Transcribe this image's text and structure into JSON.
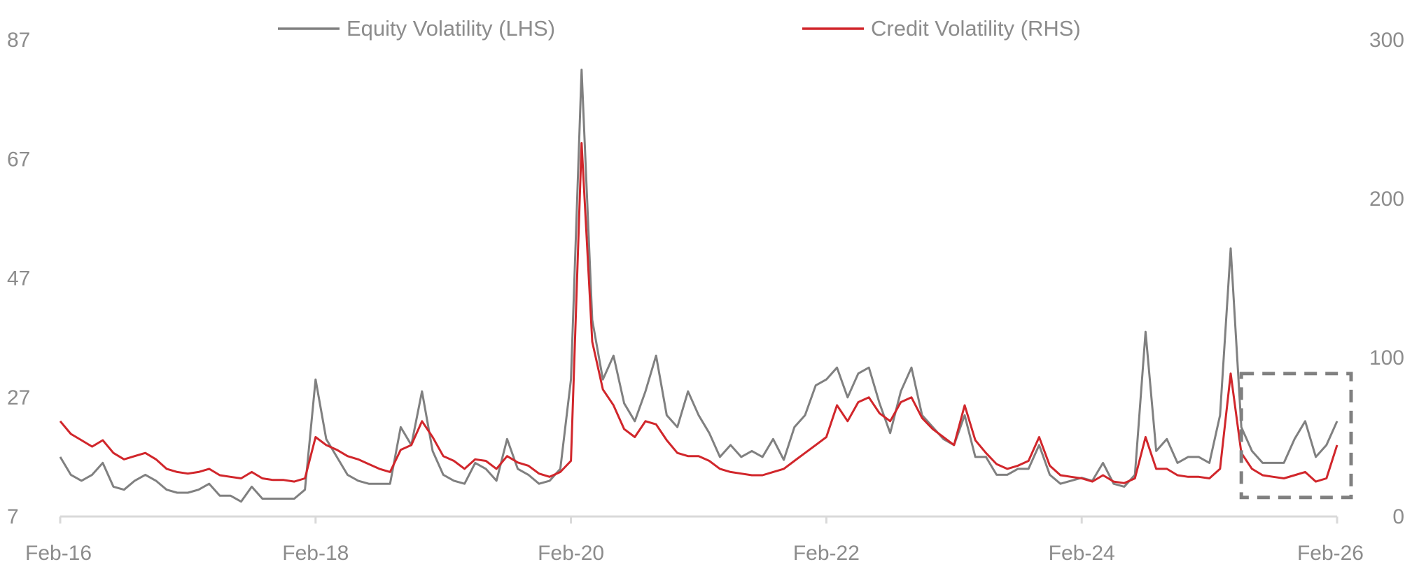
{
  "chart_data": {
    "type": "line",
    "title": "",
    "xlabel": "",
    "ylabel": "",
    "x_ticks": [
      "Feb-16",
      "Feb-18",
      "Feb-20",
      "Feb-22",
      "Feb-24",
      "Feb-26"
    ],
    "x_range": [
      "Feb-16",
      "Feb-26"
    ],
    "y_left": {
      "lim": [
        7,
        87
      ],
      "ticks": [
        7,
        27,
        47,
        67,
        87
      ]
    },
    "y_right": {
      "lim": [
        0,
        300
      ],
      "ticks": [
        0,
        100,
        200,
        300
      ]
    },
    "grid": false,
    "legend_position": "top",
    "highlight_box": {
      "x": [
        "2025-05",
        "2026-02"
      ],
      "y_right": [
        12,
        90
      ],
      "style": "dashed"
    },
    "series": [
      {
        "name": "Equity Volatility (LHS)",
        "axis": "left",
        "color": "#808080",
        "points": [
          [
            "2016-02",
            17
          ],
          [
            "2016-03",
            14
          ],
          [
            "2016-04",
            13
          ],
          [
            "2016-05",
            14
          ],
          [
            "2016-06",
            16
          ],
          [
            "2016-07",
            12
          ],
          [
            "2016-08",
            11.5
          ],
          [
            "2016-09",
            13
          ],
          [
            "2016-10",
            14
          ],
          [
            "2016-11",
            13
          ],
          [
            "2016-12",
            11.5
          ],
          [
            "2017-01",
            11
          ],
          [
            "2017-02",
            11
          ],
          [
            "2017-03",
            11.5
          ],
          [
            "2017-04",
            12.5
          ],
          [
            "2017-05",
            10.5
          ],
          [
            "2017-06",
            10.5
          ],
          [
            "2017-07",
            9.5
          ],
          [
            "2017-08",
            12
          ],
          [
            "2017-09",
            10
          ],
          [
            "2017-10",
            10
          ],
          [
            "2017-11",
            10
          ],
          [
            "2017-12",
            10
          ],
          [
            "2018-01",
            11.5
          ],
          [
            "2018-02",
            30
          ],
          [
            "2018-03",
            20
          ],
          [
            "2018-04",
            17
          ],
          [
            "2018-05",
            14
          ],
          [
            "2018-06",
            13
          ],
          [
            "2018-07",
            12.5
          ],
          [
            "2018-08",
            12.5
          ],
          [
            "2018-09",
            12.5
          ],
          [
            "2018-10",
            22
          ],
          [
            "2018-11",
            19
          ],
          [
            "2018-12",
            28
          ],
          [
            "2019-01",
            18
          ],
          [
            "2019-02",
            14
          ],
          [
            "2019-03",
            13
          ],
          [
            "2019-04",
            12.5
          ],
          [
            "2019-05",
            16
          ],
          [
            "2019-06",
            15
          ],
          [
            "2019-07",
            13
          ],
          [
            "2019-08",
            20
          ],
          [
            "2019-09",
            15
          ],
          [
            "2019-10",
            14
          ],
          [
            "2019-11",
            12.5
          ],
          [
            "2019-12",
            13
          ],
          [
            "2020-01",
            15
          ],
          [
            "2020-02",
            30
          ],
          [
            "2020-03",
            82
          ],
          [
            "2020-04",
            40
          ],
          [
            "2020-05",
            30
          ],
          [
            "2020-06",
            34
          ],
          [
            "2020-07",
            26
          ],
          [
            "2020-08",
            23
          ],
          [
            "2020-09",
            28
          ],
          [
            "2020-10",
            34
          ],
          [
            "2020-11",
            24
          ],
          [
            "2020-12",
            22
          ],
          [
            "2021-01",
            28
          ],
          [
            "2021-02",
            24
          ],
          [
            "2021-03",
            21
          ],
          [
            "2021-04",
            17
          ],
          [
            "2021-05",
            19
          ],
          [
            "2021-06",
            17
          ],
          [
            "2021-07",
            18
          ],
          [
            "2021-08",
            17
          ],
          [
            "2021-09",
            20
          ],
          [
            "2021-10",
            16.5
          ],
          [
            "2021-11",
            22
          ],
          [
            "2021-12",
            24
          ],
          [
            "2022-01",
            29
          ],
          [
            "2022-02",
            30
          ],
          [
            "2022-03",
            32
          ],
          [
            "2022-04",
            27
          ],
          [
            "2022-05",
            31
          ],
          [
            "2022-06",
            32
          ],
          [
            "2022-07",
            26
          ],
          [
            "2022-08",
            21
          ],
          [
            "2022-09",
            28
          ],
          [
            "2022-10",
            32
          ],
          [
            "2022-11",
            24
          ],
          [
            "2022-12",
            22
          ],
          [
            "2023-01",
            20
          ],
          [
            "2023-02",
            19
          ],
          [
            "2023-03",
            24
          ],
          [
            "2023-04",
            17
          ],
          [
            "2023-05",
            17
          ],
          [
            "2023-06",
            14
          ],
          [
            "2023-07",
            14
          ],
          [
            "2023-08",
            15
          ],
          [
            "2023-09",
            15
          ],
          [
            "2023-10",
            19
          ],
          [
            "2023-11",
            14
          ],
          [
            "2023-12",
            12.5
          ],
          [
            "2024-01",
            13
          ],
          [
            "2024-02",
            13.5
          ],
          [
            "2024-03",
            13
          ],
          [
            "2024-04",
            16
          ],
          [
            "2024-05",
            12.5
          ],
          [
            "2024-06",
            12
          ],
          [
            "2024-07",
            14
          ],
          [
            "2024-08",
            38
          ],
          [
            "2024-09",
            18
          ],
          [
            "2024-10",
            20
          ],
          [
            "2024-11",
            16
          ],
          [
            "2024-12",
            17
          ],
          [
            "2025-01",
            17
          ],
          [
            "2025-02",
            16
          ],
          [
            "2025-03",
            24
          ],
          [
            "2025-04",
            52
          ],
          [
            "2025-05",
            22
          ],
          [
            "2025-06",
            18
          ],
          [
            "2025-07",
            16
          ],
          [
            "2025-08",
            16
          ],
          [
            "2025-09",
            16
          ],
          [
            "2025-10",
            20
          ],
          [
            "2025-11",
            23
          ],
          [
            "2025-12",
            17
          ],
          [
            "2026-01",
            19
          ],
          [
            "2026-02",
            23
          ]
        ]
      },
      {
        "name": "Credit Volatility (RHS)",
        "axis": "right",
        "color": "#d1262b",
        "points": [
          [
            "2016-02",
            60
          ],
          [
            "2016-03",
            52
          ],
          [
            "2016-04",
            48
          ],
          [
            "2016-05",
            44
          ],
          [
            "2016-06",
            48
          ],
          [
            "2016-07",
            40
          ],
          [
            "2016-08",
            36
          ],
          [
            "2016-09",
            38
          ],
          [
            "2016-10",
            40
          ],
          [
            "2016-11",
            36
          ],
          [
            "2016-12",
            30
          ],
          [
            "2017-01",
            28
          ],
          [
            "2017-02",
            27
          ],
          [
            "2017-03",
            28
          ],
          [
            "2017-04",
            30
          ],
          [
            "2017-05",
            26
          ],
          [
            "2017-06",
            25
          ],
          [
            "2017-07",
            24
          ],
          [
            "2017-08",
            28
          ],
          [
            "2017-09",
            24
          ],
          [
            "2017-10",
            23
          ],
          [
            "2017-11",
            23
          ],
          [
            "2017-12",
            22
          ],
          [
            "2018-01",
            24
          ],
          [
            "2018-02",
            50
          ],
          [
            "2018-03",
            45
          ],
          [
            "2018-04",
            42
          ],
          [
            "2018-05",
            38
          ],
          [
            "2018-06",
            36
          ],
          [
            "2018-07",
            33
          ],
          [
            "2018-08",
            30
          ],
          [
            "2018-09",
            28
          ],
          [
            "2018-10",
            42
          ],
          [
            "2018-11",
            45
          ],
          [
            "2018-12",
            60
          ],
          [
            "2019-01",
            50
          ],
          [
            "2019-02",
            38
          ],
          [
            "2019-03",
            35
          ],
          [
            "2019-04",
            30
          ],
          [
            "2019-05",
            36
          ],
          [
            "2019-06",
            35
          ],
          [
            "2019-07",
            30
          ],
          [
            "2019-08",
            38
          ],
          [
            "2019-09",
            34
          ],
          [
            "2019-10",
            32
          ],
          [
            "2019-11",
            27
          ],
          [
            "2019-12",
            25
          ],
          [
            "2020-01",
            28
          ],
          [
            "2020-02",
            35
          ],
          [
            "2020-03",
            235
          ],
          [
            "2020-04",
            110
          ],
          [
            "2020-05",
            80
          ],
          [
            "2020-06",
            70
          ],
          [
            "2020-07",
            55
          ],
          [
            "2020-08",
            50
          ],
          [
            "2020-09",
            60
          ],
          [
            "2020-10",
            58
          ],
          [
            "2020-11",
            48
          ],
          [
            "2020-12",
            40
          ],
          [
            "2021-01",
            38
          ],
          [
            "2021-02",
            38
          ],
          [
            "2021-03",
            35
          ],
          [
            "2021-04",
            30
          ],
          [
            "2021-05",
            28
          ],
          [
            "2021-06",
            27
          ],
          [
            "2021-07",
            26
          ],
          [
            "2021-08",
            26
          ],
          [
            "2021-09",
            28
          ],
          [
            "2021-10",
            30
          ],
          [
            "2021-11",
            35
          ],
          [
            "2021-12",
            40
          ],
          [
            "2022-01",
            45
          ],
          [
            "2022-02",
            50
          ],
          [
            "2022-03",
            70
          ],
          [
            "2022-04",
            60
          ],
          [
            "2022-05",
            72
          ],
          [
            "2022-06",
            75
          ],
          [
            "2022-07",
            65
          ],
          [
            "2022-08",
            60
          ],
          [
            "2022-09",
            72
          ],
          [
            "2022-10",
            75
          ],
          [
            "2022-11",
            62
          ],
          [
            "2022-12",
            55
          ],
          [
            "2023-01",
            50
          ],
          [
            "2023-02",
            45
          ],
          [
            "2023-03",
            70
          ],
          [
            "2023-04",
            48
          ],
          [
            "2023-05",
            40
          ],
          [
            "2023-06",
            33
          ],
          [
            "2023-07",
            30
          ],
          [
            "2023-08",
            32
          ],
          [
            "2023-09",
            35
          ],
          [
            "2023-10",
            50
          ],
          [
            "2023-11",
            32
          ],
          [
            "2023-12",
            26
          ],
          [
            "2024-01",
            25
          ],
          [
            "2024-02",
            24
          ],
          [
            "2024-03",
            22
          ],
          [
            "2024-04",
            26
          ],
          [
            "2024-05",
            22
          ],
          [
            "2024-06",
            21
          ],
          [
            "2024-07",
            24
          ],
          [
            "2024-08",
            50
          ],
          [
            "2024-09",
            30
          ],
          [
            "2024-10",
            30
          ],
          [
            "2024-11",
            26
          ],
          [
            "2024-12",
            25
          ],
          [
            "2025-01",
            25
          ],
          [
            "2025-02",
            24
          ],
          [
            "2025-03",
            30
          ],
          [
            "2025-04",
            90
          ],
          [
            "2025-05",
            40
          ],
          [
            "2025-06",
            30
          ],
          [
            "2025-07",
            26
          ],
          [
            "2025-08",
            25
          ],
          [
            "2025-09",
            24
          ],
          [
            "2025-10",
            26
          ],
          [
            "2025-11",
            28
          ],
          [
            "2025-12",
            22
          ],
          [
            "2026-01",
            24
          ],
          [
            "2026-02",
            45
          ]
        ]
      }
    ]
  }
}
